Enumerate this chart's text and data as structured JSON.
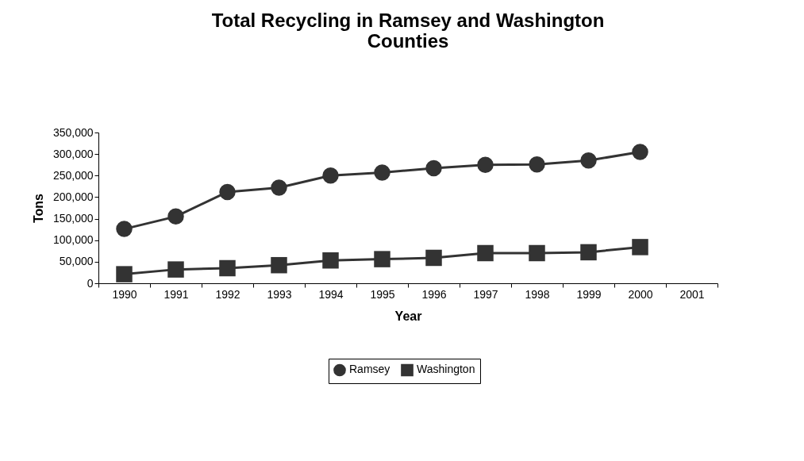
{
  "chart_data": {
    "type": "line",
    "title": "Total Recycling in Ramsey and Washington Counties",
    "xlabel": "Year",
    "ylabel": "Tons",
    "categories": [
      "1990",
      "1991",
      "1992",
      "1993",
      "1994",
      "1995",
      "1996",
      "1997",
      "1998",
      "1999",
      "2000",
      "2001"
    ],
    "series": [
      {
        "name": "Ramsey",
        "color": "#333333",
        "marker": "circle",
        "values": [
          126000,
          155000,
          212000,
          222000,
          250000,
          257000,
          267000,
          275000,
          276000,
          285000,
          305000,
          null
        ]
      },
      {
        "name": "Washington",
        "color": "#333333",
        "marker": "square",
        "values": [
          21000,
          32000,
          35000,
          42000,
          53000,
          56000,
          59000,
          70000,
          70000,
          72000,
          84000,
          null
        ]
      }
    ],
    "ylim": [
      0,
      350000
    ],
    "yticks": [
      0,
      {
        "value": 50000,
        "label": "50,000"
      },
      {
        "value": 100000,
        "label": "100,000"
      },
      {
        "value": 150000,
        "label": "150,000"
      },
      {
        "value": 200000,
        "label": "200,000"
      },
      {
        "value": 250000,
        "label": "250,000"
      },
      {
        "value": 300000,
        "label": "300,000"
      },
      {
        "value": 350000,
        "label": "350,000"
      }
    ],
    "grid": false,
    "legend": "bottom",
    "line_style": "solid"
  }
}
